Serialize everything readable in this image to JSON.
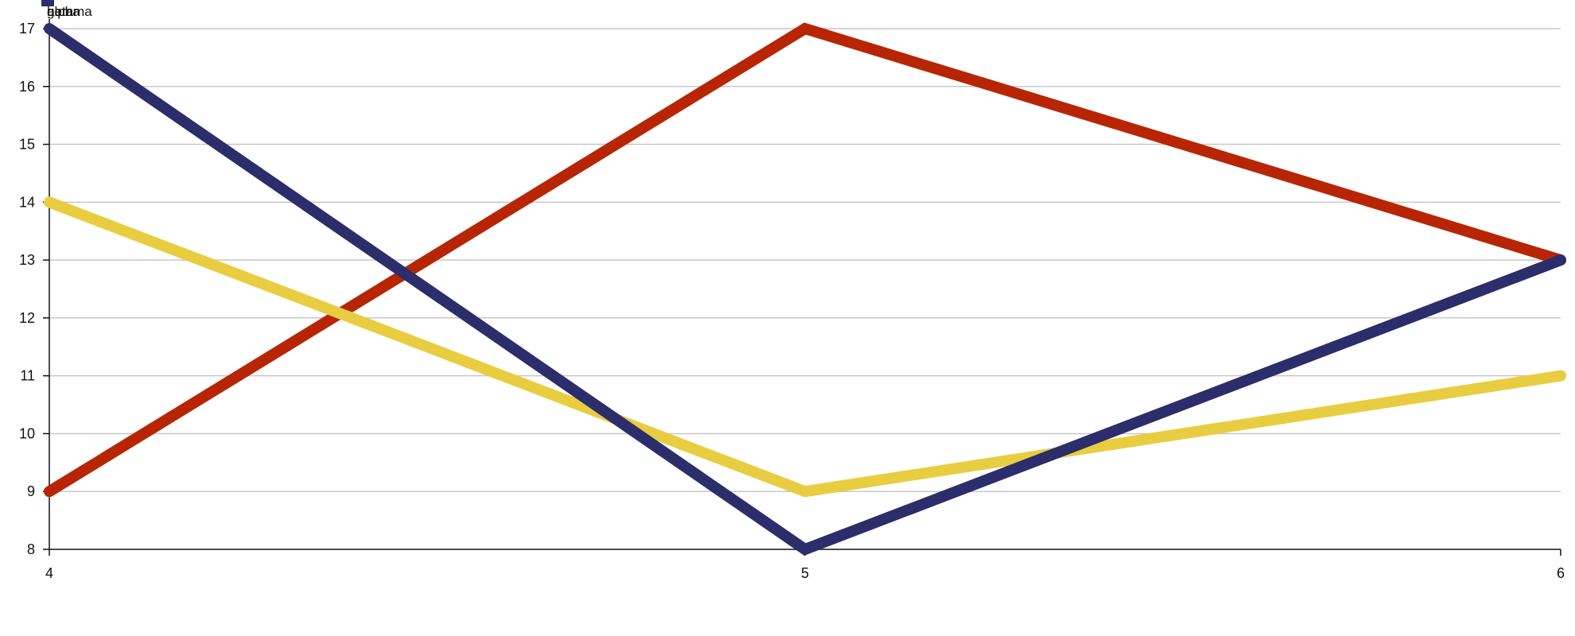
{
  "chart_data": {
    "type": "line",
    "x": [
      4,
      5,
      6
    ],
    "xlim": [
      4,
      6
    ],
    "ylim": [
      8,
      17
    ],
    "x_ticks": [
      "4",
      "5",
      "6"
    ],
    "y_ticks": [
      "8",
      "9",
      "10",
      "11",
      "12",
      "13",
      "14",
      "15",
      "16",
      "17"
    ],
    "grid": "horizontal",
    "legend_position": "top-left",
    "series": [
      {
        "name": "alpha",
        "color": "#b82505",
        "values": [
          9,
          17,
          13
        ]
      },
      {
        "name": "gamma",
        "color": "#e9cd41",
        "values": [
          14,
          9,
          11
        ]
      },
      {
        "name": "beta",
        "color": "#2c2d6b",
        "values": [
          17,
          8,
          13
        ]
      }
    ]
  }
}
